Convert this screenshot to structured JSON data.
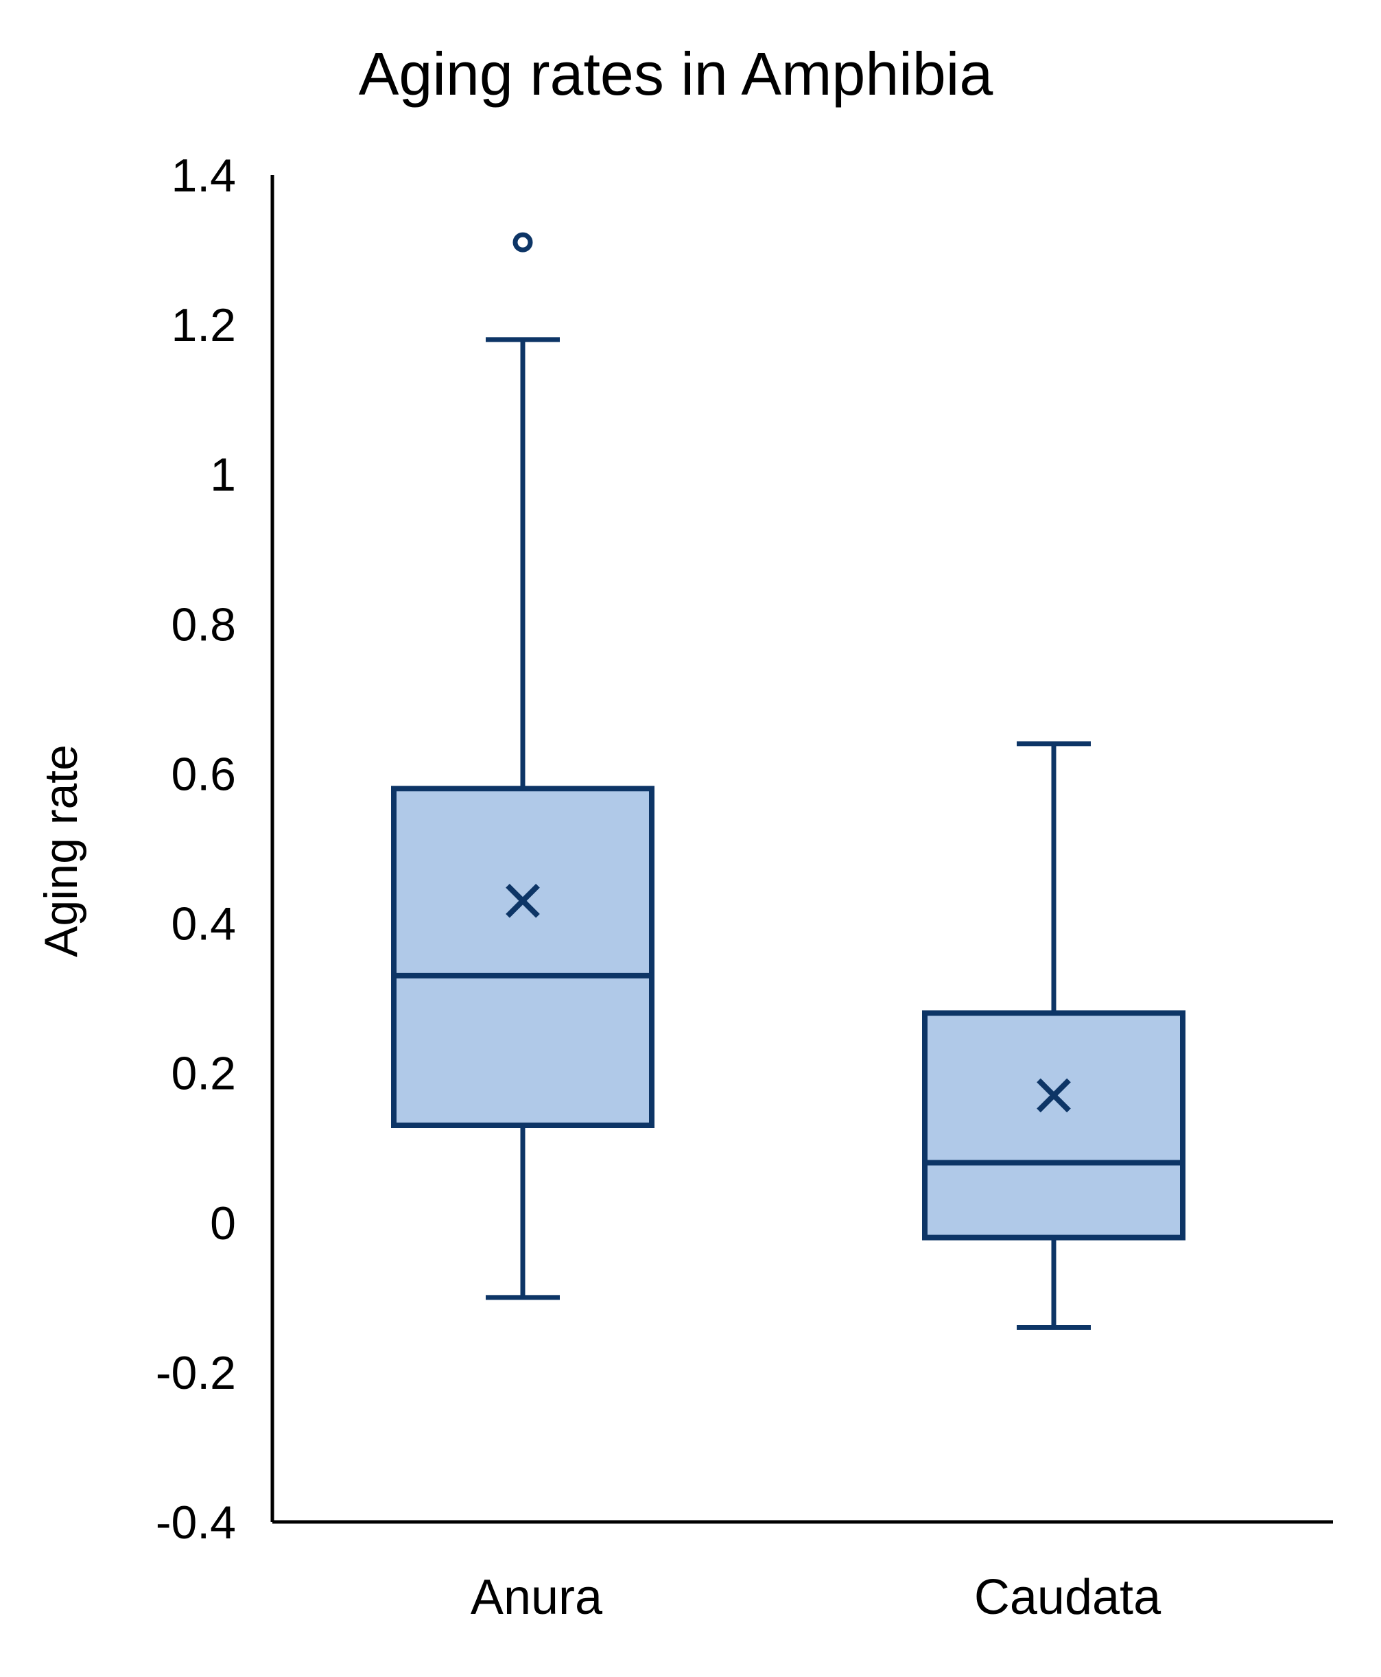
{
  "chart_data": {
    "type": "box",
    "title": "Aging rates in Amphibia",
    "xlabel": "",
    "ylabel": "Aging rate",
    "ylim": [
      -0.4,
      1.4
    ],
    "yticks": [
      1.4,
      1.2,
      1,
      0.8,
      0.6,
      0.4,
      0.2,
      0,
      -0.2,
      -0.4
    ],
    "ytick_labels": [
      "1.4",
      "1.2",
      "1",
      "0.8",
      "0.6",
      "0.4",
      "0.2",
      "0",
      "-0.2",
      "-0.4"
    ],
    "grid": false,
    "legend": "none",
    "categories": [
      "Anura",
      "Caudata"
    ],
    "boxes": [
      {
        "category": "Anura",
        "whisker_low": -0.1,
        "q1": 0.13,
        "median": 0.33,
        "q3": 0.58,
        "whisker_high": 1.18,
        "mean": 0.43,
        "outliers": [
          1.31
        ]
      },
      {
        "category": "Caudata",
        "whisker_low": -0.14,
        "q1": -0.02,
        "median": 0.08,
        "q3": 0.28,
        "whisker_high": 0.64,
        "mean": 0.17,
        "outliers": []
      }
    ],
    "colors": {
      "box_fill": "#b0c9e8",
      "box_stroke": "#0d3566",
      "axis": "#000000",
      "text": "#000000"
    }
  }
}
